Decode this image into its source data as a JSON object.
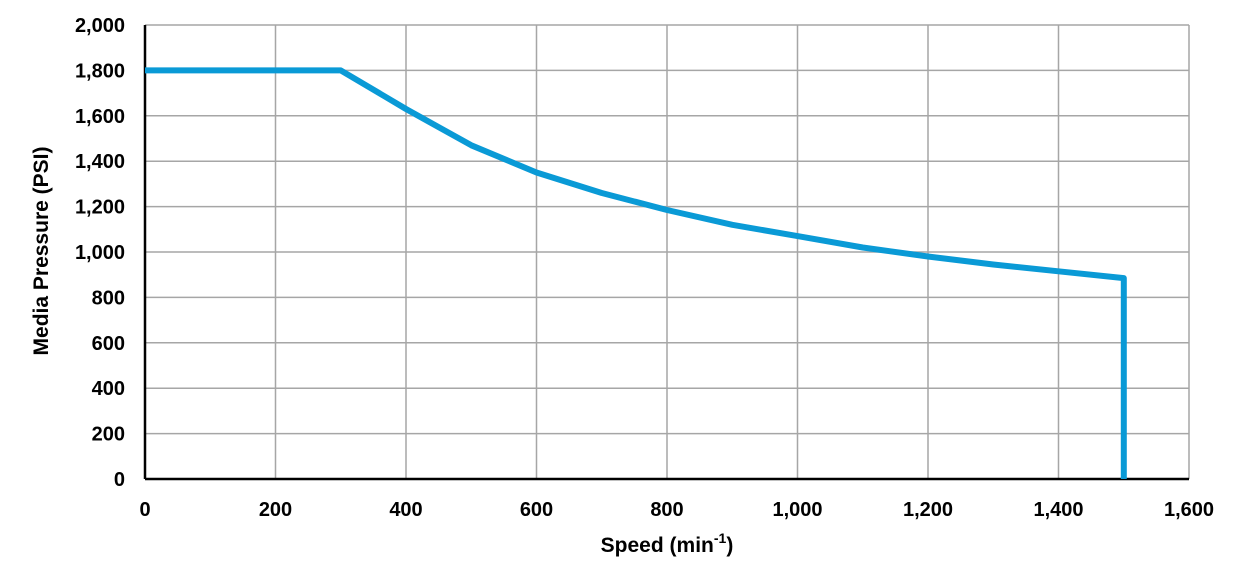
{
  "chart_data": {
    "type": "line",
    "xlabel": "Speed (min",
    "xlabel_superscript": "-1",
    "xlabel_suffix": ")",
    "ylabel": "Media Pressure (PSI)",
    "xlim": [
      0,
      1600
    ],
    "ylim": [
      0,
      2000
    ],
    "x_ticks": [
      0,
      200,
      400,
      600,
      800,
      1000,
      1200,
      1400,
      1600
    ],
    "x_tick_labels": [
      "0",
      "200",
      "400",
      "600",
      "800",
      "1,000",
      "1,200",
      "1,400",
      "1,600"
    ],
    "y_ticks": [
      0,
      200,
      400,
      600,
      800,
      1000,
      1200,
      1400,
      1600,
      1800,
      2000
    ],
    "y_tick_labels": [
      "0",
      "200",
      "400",
      "600",
      "800",
      "1,000",
      "1,200",
      "1,400",
      "1,600",
      "1,800",
      "2,000"
    ],
    "grid": true,
    "series": [
      {
        "color": "#0a9ad6",
        "x": [
          0,
          300,
          400,
          500,
          600,
          700,
          800,
          900,
          1000,
          1100,
          1200,
          1300,
          1400,
          1500,
          1500
        ],
        "y": [
          1800,
          1800,
          1630,
          1470,
          1350,
          1260,
          1185,
          1120,
          1070,
          1020,
          980,
          945,
          915,
          885,
          0
        ]
      }
    ]
  }
}
